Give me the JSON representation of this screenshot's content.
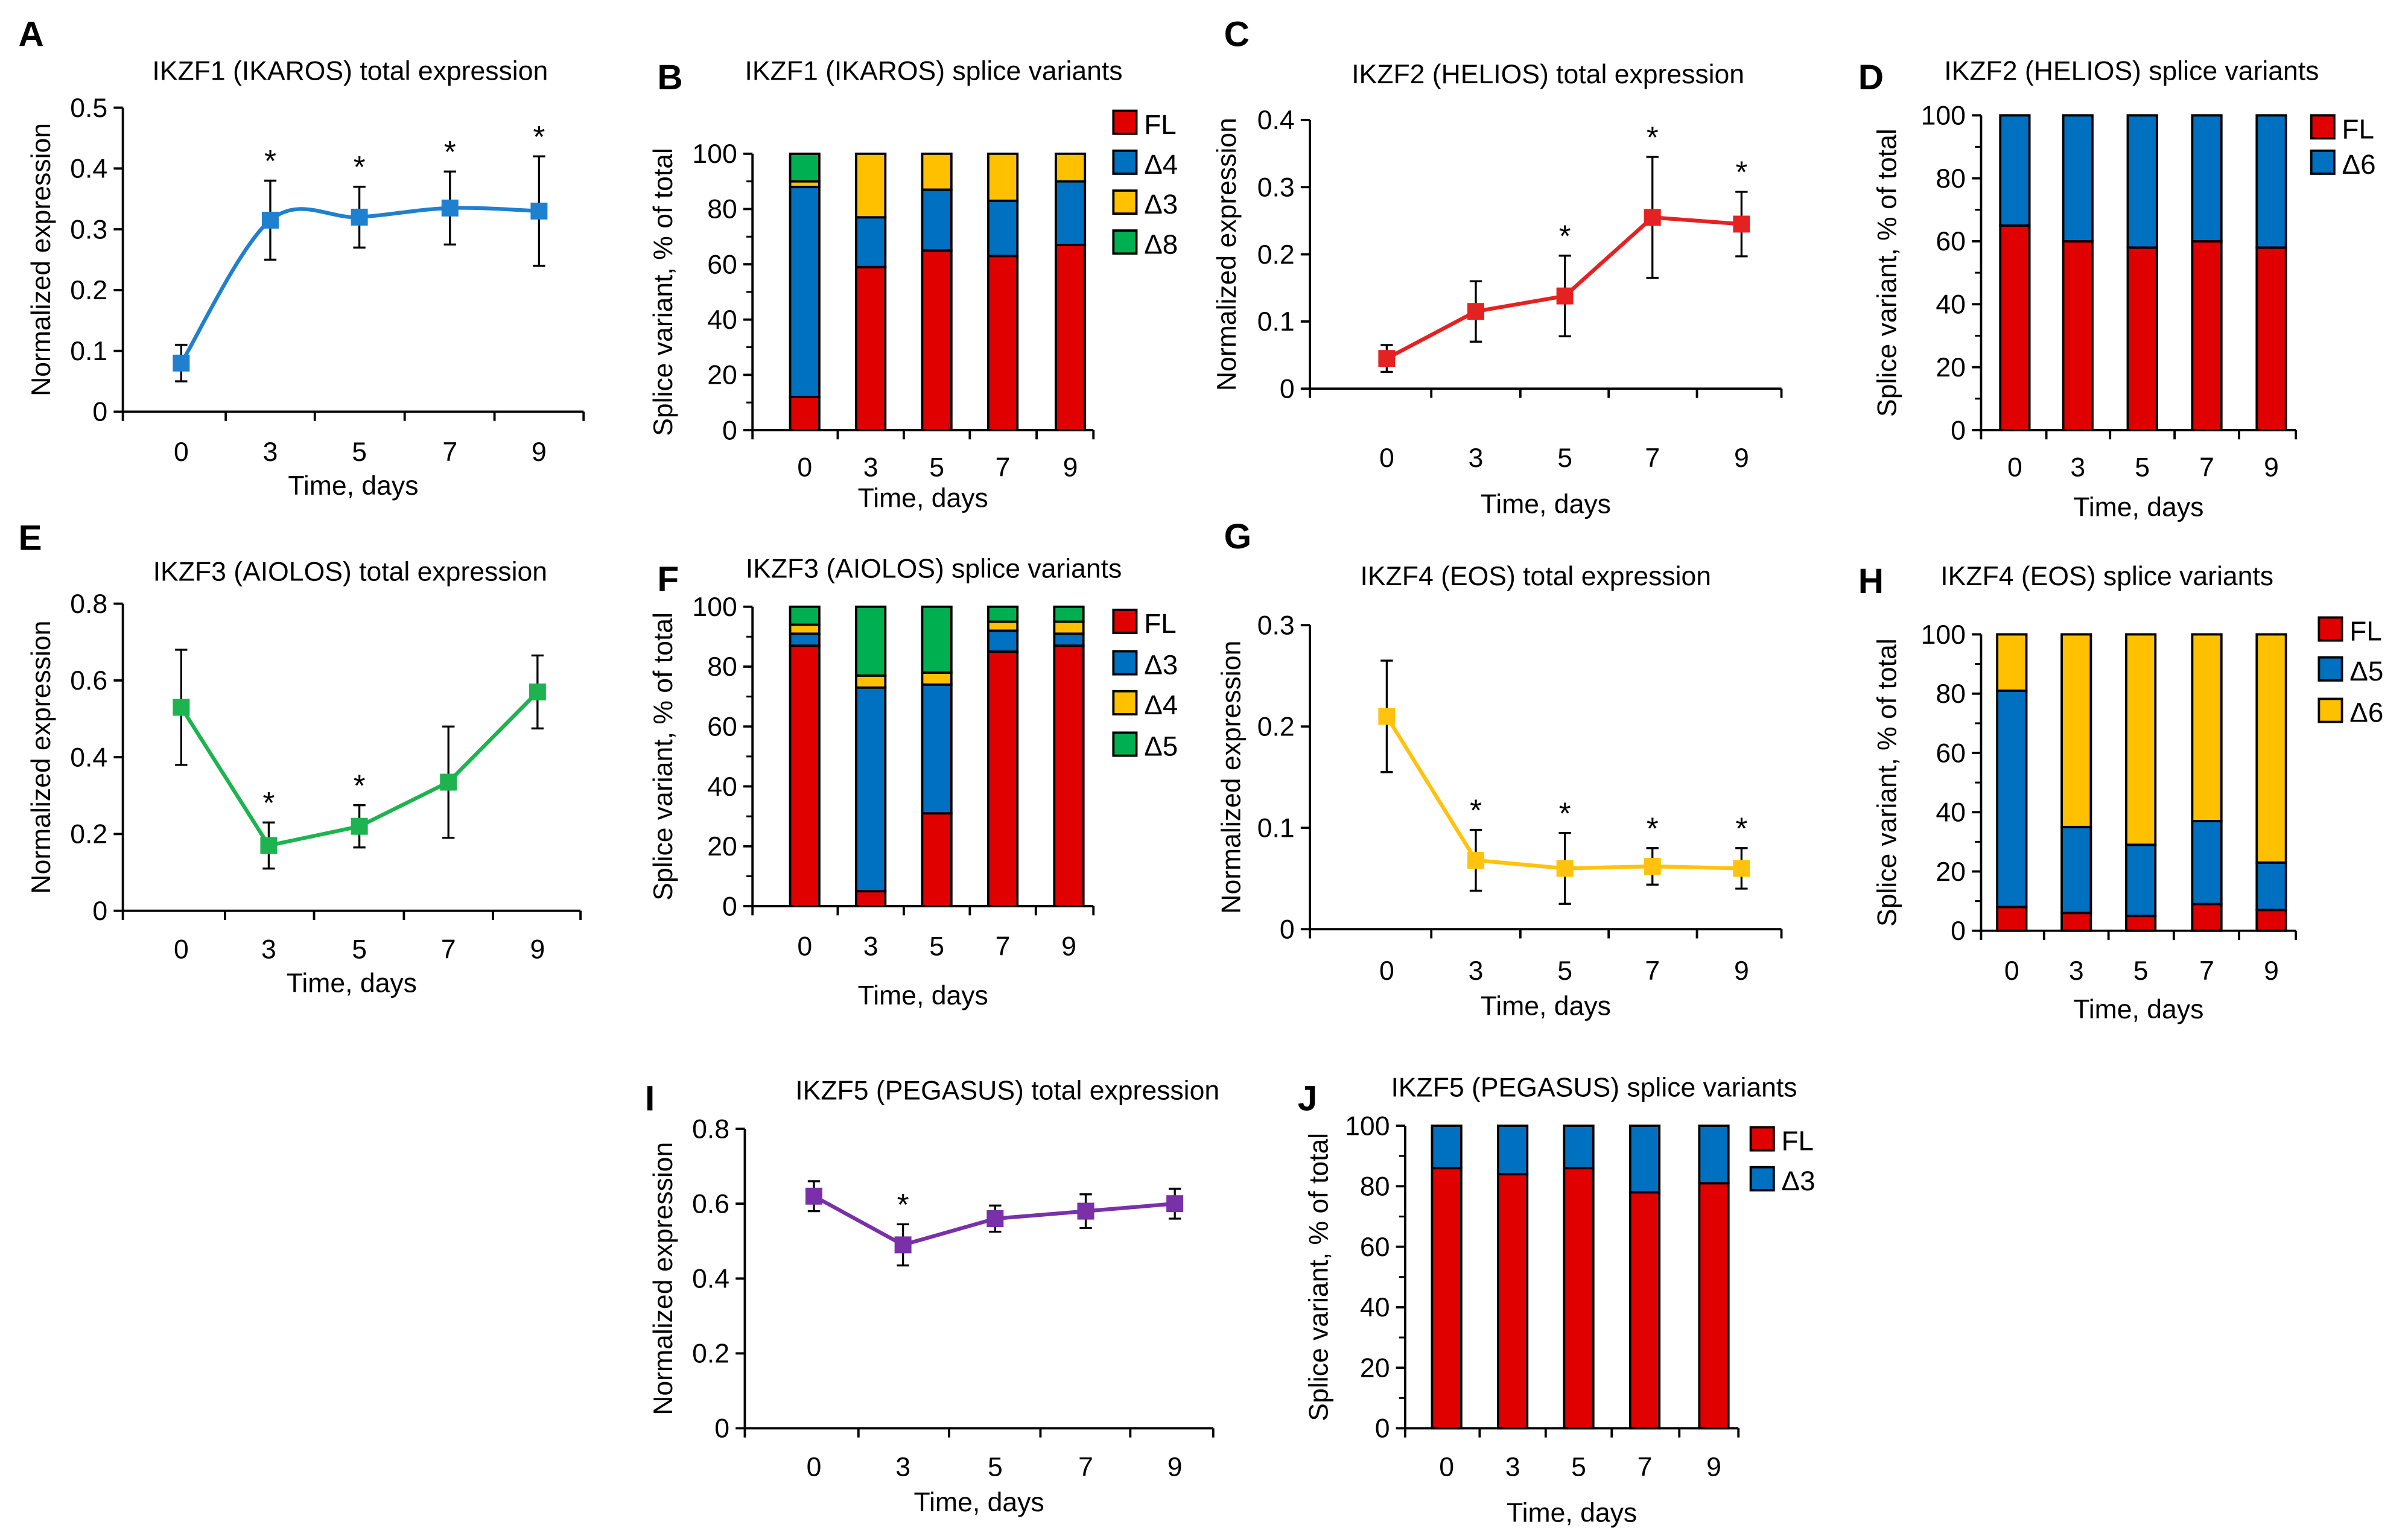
{
  "colors": {
    "FL": "#E00000",
    "blue": "#0070C0",
    "yellow": "#FFC000",
    "green": "#00B050",
    "ikzf1": "#1F80CF",
    "ikzf2": "#E52222",
    "ikzf3": "#1DB34F",
    "ikzf4": "#FFC20E",
    "ikzf5": "#7A30A8"
  },
  "chart_data": [
    {
      "panel": "A",
      "type": "line",
      "title": "IKZF1 (IKAROS) total expression",
      "xlabel": "Time, days",
      "ylabel": "Normalized expression",
      "categories": [
        "0",
        "3",
        "5",
        "7",
        "9"
      ],
      "values": [
        0.08,
        0.315,
        0.32,
        0.335,
        0.33
      ],
      "errors": [
        0.03,
        0.065,
        0.05,
        0.06,
        0.09
      ],
      "significant": [
        false,
        true,
        true,
        true,
        true
      ],
      "star": "*",
      "ylim": [
        0,
        0.5
      ],
      "yticks": [
        "0",
        "0.1",
        "0.2",
        "0.3",
        "0.4",
        "0.5"
      ],
      "smooth": true,
      "color": "#1F80CF",
      "grid": false
    },
    {
      "panel": "B",
      "type": "bar",
      "stacked": true,
      "title": "IKZF1 (IKAROS) splice variants",
      "xlabel": "Time, days",
      "ylabel": "Splice variant, % of total",
      "categories": [
        "0",
        "3",
        "5",
        "7",
        "9"
      ],
      "ylim": [
        0,
        100
      ],
      "yticks": [
        "0",
        "20",
        "40",
        "60",
        "80",
        "100"
      ],
      "legend": "right",
      "series": [
        {
          "name": "FL",
          "color": "#E00000",
          "values": [
            12,
            59,
            65,
            63,
            67
          ]
        },
        {
          "name": "Δ4",
          "color": "#0070C0",
          "values": [
            76,
            18,
            22,
            20,
            23
          ]
        },
        {
          "name": "Δ3",
          "color": "#FFC000",
          "values": [
            2,
            23,
            13,
            17,
            10
          ]
        },
        {
          "name": "Δ8",
          "color": "#00B050",
          "values": [
            10,
            0,
            0,
            0,
            0
          ]
        }
      ]
    },
    {
      "panel": "C",
      "type": "line",
      "title": "IKZF2 (HELIOS) total expression",
      "xlabel": "Time, days",
      "ylabel": "Normalized expression",
      "categories": [
        "0",
        "3",
        "5",
        "7",
        "9"
      ],
      "values": [
        0.045,
        0.115,
        0.138,
        0.255,
        0.245
      ],
      "errors": [
        0.02,
        0.045,
        0.06,
        0.09,
        0.048
      ],
      "significant": [
        false,
        false,
        true,
        true,
        true
      ],
      "star": "*",
      "ylim": [
        0,
        0.4
      ],
      "yticks": [
        "0",
        "0.1",
        "0.2",
        "0.3",
        "0.4"
      ],
      "smooth": false,
      "color": "#E52222",
      "grid": false
    },
    {
      "panel": "D",
      "type": "bar",
      "stacked": true,
      "title": "IKZF2 (HELIOS) splice variants",
      "xlabel": "Time, days",
      "ylabel": "Splice variant, % of total",
      "categories": [
        "0",
        "3",
        "5",
        "7",
        "9"
      ],
      "ylim": [
        0,
        100
      ],
      "yticks": [
        "0",
        "20",
        "40",
        "60",
        "80",
        "100"
      ],
      "legend": "right",
      "series": [
        {
          "name": "FL",
          "color": "#E00000",
          "values": [
            65,
            60,
            58,
            60,
            58
          ]
        },
        {
          "name": "Δ6",
          "color": "#0070C0",
          "values": [
            35,
            40,
            42,
            40,
            42
          ]
        }
      ]
    },
    {
      "panel": "E",
      "type": "line",
      "title": "IKZF3 (AIOLOS) total expression",
      "xlabel": "Time, days",
      "ylabel": "Normalized expression",
      "categories": [
        "0",
        "3",
        "5",
        "7",
        "9"
      ],
      "values": [
        0.53,
        0.17,
        0.22,
        0.335,
        0.57
      ],
      "errors": [
        0.15,
        0.06,
        0.055,
        0.145,
        0.095
      ],
      "significant": [
        false,
        true,
        true,
        false,
        false
      ],
      "star": "*",
      "ylim": [
        0,
        0.8
      ],
      "yticks": [
        "0",
        "0.2",
        "0.4",
        "0.6",
        "0.8"
      ],
      "smooth": false,
      "color": "#1DB34F",
      "grid": false
    },
    {
      "panel": "F",
      "type": "bar",
      "stacked": true,
      "title": "IKZF3 (AIOLOS) splice variants",
      "xlabel": "Time, days",
      "ylabel": "Splice variant, % of total",
      "categories": [
        "0",
        "3",
        "5",
        "7",
        "9"
      ],
      "ylim": [
        0,
        100
      ],
      "yticks": [
        "0",
        "20",
        "40",
        "60",
        "80",
        "100"
      ],
      "legend": "right",
      "series": [
        {
          "name": "FL",
          "color": "#E00000",
          "values": [
            87,
            5,
            31,
            85,
            87
          ]
        },
        {
          "name": "Δ3",
          "color": "#0070C0",
          "values": [
            4,
            68,
            43,
            7,
            4
          ]
        },
        {
          "name": "Δ4",
          "color": "#FFC000",
          "values": [
            3,
            4,
            4,
            3,
            4
          ]
        },
        {
          "name": "Δ5",
          "color": "#00B050",
          "values": [
            6,
            23,
            22,
            5,
            5
          ]
        }
      ]
    },
    {
      "panel": "G",
      "type": "line",
      "title": "IKZF4 (EOS) total expression",
      "xlabel": "Time, days",
      "ylabel": "Normalized expression",
      "categories": [
        "0",
        "3",
        "5",
        "7",
        "9"
      ],
      "values": [
        0.21,
        0.068,
        0.06,
        0.062,
        0.06
      ],
      "errors": [
        0.055,
        0.03,
        0.035,
        0.018,
        0.02
      ],
      "significant": [
        false,
        true,
        true,
        true,
        true
      ],
      "star": "*",
      "ylim": [
        0,
        0.3
      ],
      "yticks": [
        "0",
        "0.1",
        "0.2",
        "0.3"
      ],
      "smooth": false,
      "color": "#FFC20E",
      "grid": false
    },
    {
      "panel": "H",
      "type": "bar",
      "stacked": true,
      "title": "IKZF4 (EOS) splice variants",
      "xlabel": "Time, days",
      "ylabel": "Splice variant, % of total",
      "categories": [
        "0",
        "3",
        "5",
        "7",
        "9"
      ],
      "ylim": [
        0,
        100
      ],
      "yticks": [
        "0",
        "20",
        "40",
        "60",
        "80",
        "100"
      ],
      "legend": "right",
      "series": [
        {
          "name": "FL",
          "color": "#E00000",
          "values": [
            8,
            6,
            5,
            9,
            7
          ]
        },
        {
          "name": "Δ5",
          "color": "#0070C0",
          "values": [
            73,
            29,
            24,
            28,
            16
          ]
        },
        {
          "name": "Δ6",
          "color": "#FFC000",
          "values": [
            19,
            65,
            71,
            63,
            77
          ]
        }
      ]
    },
    {
      "panel": "I",
      "type": "line",
      "title": "IKZF5 (PEGASUS) total expression",
      "xlabel": "Time, days",
      "ylabel": "Normalized expression",
      "categories": [
        "0",
        "3",
        "5",
        "7",
        "9"
      ],
      "values": [
        0.62,
        0.49,
        0.56,
        0.58,
        0.6
      ],
      "errors": [
        0.04,
        0.055,
        0.035,
        0.045,
        0.04
      ],
      "significant": [
        false,
        true,
        false,
        false,
        false
      ],
      "star": "*",
      "ylim": [
        0,
        0.8
      ],
      "yticks": [
        "0",
        "0.2",
        "0.4",
        "0.6",
        "0.8"
      ],
      "smooth": false,
      "color": "#7A30A8",
      "grid": false
    },
    {
      "panel": "J",
      "type": "bar",
      "stacked": true,
      "title": "IKZF5 (PEGASUS) splice variants",
      "xlabel": "Time, days",
      "ylabel": "Splice variant, % of total",
      "categories": [
        "0",
        "3",
        "5",
        "7",
        "9"
      ],
      "ylim": [
        0,
        100
      ],
      "yticks": [
        "0",
        "20",
        "40",
        "60",
        "80",
        "100"
      ],
      "legend": "right",
      "series": [
        {
          "name": "FL",
          "color": "#E00000",
          "values": [
            86,
            84,
            86,
            78,
            81
          ]
        },
        {
          "name": "Δ3",
          "color": "#0070C0",
          "values": [
            14,
            16,
            14,
            22,
            19
          ]
        }
      ]
    }
  ]
}
